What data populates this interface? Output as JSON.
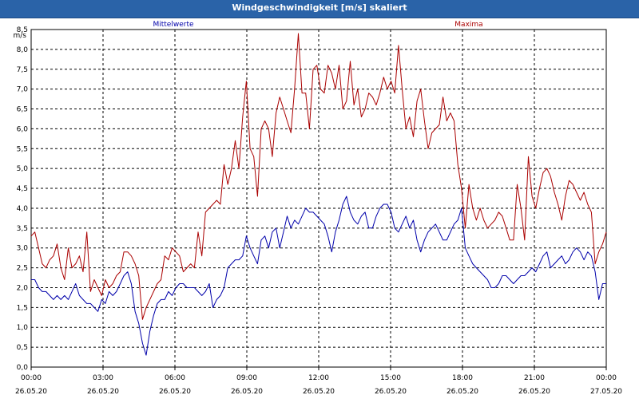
{
  "window": {
    "title": "Windgeschwindigkeit [m/s] skaliert"
  },
  "chart_data": {
    "type": "line",
    "title": "Windgeschwindigkeit [m/s] skaliert",
    "ylabel": "m/s",
    "xlabel": "",
    "ylim": [
      0,
      8.5
    ],
    "xlim_hours": [
      0,
      24
    ],
    "grid": true,
    "legend": "top",
    "y_ticks": [
      "0,0",
      "0,5",
      "1,0",
      "1,5",
      "2,0",
      "2,5",
      "3,0",
      "3,5",
      "4,0",
      "4,5",
      "5,0",
      "5,5",
      "6,0",
      "6,5",
      "7,0",
      "7,5",
      "8,0",
      "8,5"
    ],
    "x_ticks": [
      {
        "time": "00:00",
        "date": "26.05.20"
      },
      {
        "time": "03:00",
        "date": "26.05.20"
      },
      {
        "time": "06:00",
        "date": "26.05.20"
      },
      {
        "time": "09:00",
        "date": "26.05.20"
      },
      {
        "time": "12:00",
        "date": "26.05.20"
      },
      {
        "time": "15:00",
        "date": "26.05.20"
      },
      {
        "time": "18:00",
        "date": "26.05.20"
      },
      {
        "time": "21:00",
        "date": "26.05.20"
      },
      {
        "time": "00:00",
        "date": "27.05.20"
      }
    ],
    "series": [
      {
        "name": "Mittelwerte",
        "color": "#0000aa",
        "values": [
          2.2,
          2.2,
          2.0,
          1.9,
          1.9,
          1.8,
          1.7,
          1.8,
          1.7,
          1.8,
          1.7,
          1.9,
          2.1,
          1.8,
          1.7,
          1.6,
          1.6,
          1.5,
          1.4,
          1.7,
          1.6,
          1.9,
          1.8,
          1.9,
          2.1,
          2.3,
          2.4,
          2.1,
          1.4,
          1.1,
          0.6,
          0.3,
          0.9,
          1.3,
          1.6,
          1.7,
          1.7,
          1.9,
          1.8,
          2.0,
          2.1,
          2.1,
          2.0,
          2.0,
          2.0,
          1.9,
          1.8,
          1.9,
          2.1,
          1.5,
          1.7,
          1.8,
          2.0,
          2.5,
          2.6,
          2.7,
          2.7,
          2.8,
          3.3,
          3.0,
          2.8,
          2.6,
          3.2,
          3.3,
          3.0,
          3.4,
          3.5,
          3.0,
          3.4,
          3.8,
          3.5,
          3.7,
          3.6,
          3.8,
          4.0,
          3.9,
          3.9,
          3.8,
          3.7,
          3.6,
          3.3,
          2.9,
          3.4,
          3.7,
          4.1,
          4.3,
          3.9,
          3.7,
          3.6,
          3.8,
          3.9,
          3.5,
          3.5,
          3.8,
          4.0,
          4.1,
          4.1,
          3.9,
          3.5,
          3.4,
          3.6,
          3.8,
          3.5,
          3.7,
          3.2,
          2.9,
          3.2,
          3.4,
          3.5,
          3.6,
          3.4,
          3.2,
          3.2,
          3.4,
          3.6,
          3.7,
          4.0,
          3.0,
          2.8,
          2.6,
          2.5,
          2.4,
          2.3,
          2.2,
          2.0,
          2.0,
          2.1,
          2.3,
          2.3,
          2.2,
          2.1,
          2.2,
          2.3,
          2.3,
          2.4,
          2.5,
          2.4,
          2.6,
          2.8,
          2.9,
          2.5,
          2.6,
          2.7,
          2.8,
          2.6,
          2.7,
          2.9,
          3.0,
          2.9,
          2.7,
          2.9,
          2.8,
          2.4,
          1.7,
          2.1,
          2.1
        ]
      },
      {
        "name": "Maxima",
        "color": "#aa0000",
        "values": [
          3.3,
          3.4,
          3.0,
          2.6,
          2.5,
          2.7,
          2.8,
          3.1,
          2.5,
          2.2,
          3.0,
          2.5,
          2.6,
          2.8,
          2.4,
          3.4,
          1.9,
          2.2,
          2.0,
          1.8,
          2.2,
          2.0,
          2.1,
          2.3,
          2.4,
          2.9,
          2.9,
          2.8,
          2.6,
          2.3,
          1.2,
          1.5,
          1.7,
          1.9,
          2.1,
          2.2,
          2.8,
          2.7,
          3.0,
          2.9,
          2.8,
          2.4,
          2.5,
          2.6,
          2.5,
          3.4,
          2.8,
          3.9,
          4.0,
          4.1,
          4.2,
          4.1,
          5.1,
          4.6,
          5.0,
          5.7,
          5.0,
          6.3,
          7.2,
          5.5,
          5.3,
          4.3,
          6.0,
          6.2,
          6.0,
          5.3,
          6.4,
          6.8,
          6.5,
          6.2,
          5.9,
          7.0,
          8.4,
          6.9,
          6.9,
          6.0,
          7.5,
          7.6,
          7.0,
          6.9,
          7.6,
          7.4,
          7.0,
          7.6,
          6.5,
          6.7,
          7.7,
          6.6,
          7.0,
          6.3,
          6.5,
          6.9,
          6.8,
          6.6,
          6.9,
          7.3,
          7.0,
          7.2,
          6.9,
          8.1,
          7.0,
          6.0,
          6.3,
          5.8,
          6.7,
          7.0,
          6.2,
          5.5,
          5.9,
          6.0,
          6.1,
          6.8,
          6.2,
          6.4,
          6.2,
          5.1,
          4.5,
          3.5,
          4.6,
          4.0,
          3.7,
          4.0,
          3.7,
          3.5,
          3.6,
          3.7,
          3.9,
          3.8,
          3.5,
          3.2,
          3.2,
          4.6,
          4.0,
          3.2,
          5.3,
          4.3,
          4.0,
          4.5,
          4.9,
          5.0,
          4.8,
          4.4,
          4.1,
          3.7,
          4.3,
          4.7,
          4.6,
          4.4,
          4.2,
          4.4,
          4.1,
          3.9,
          2.6,
          2.9,
          3.1,
          3.4
        ]
      }
    ]
  }
}
